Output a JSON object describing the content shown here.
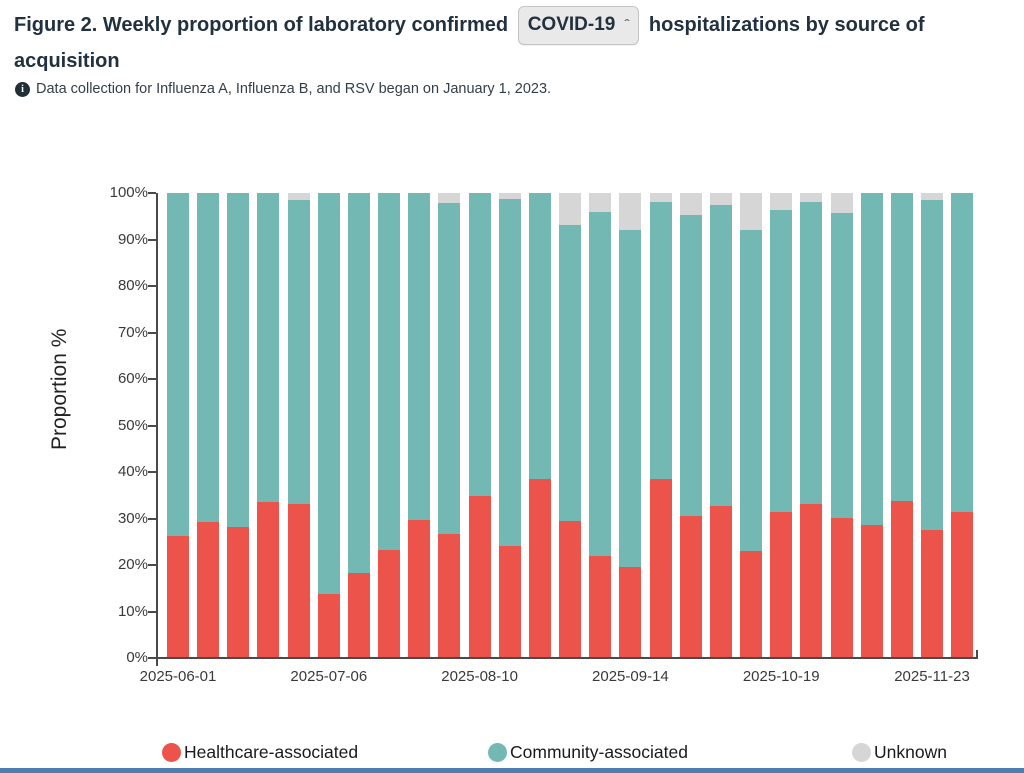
{
  "header": {
    "title_prefix": "Figure 2. Weekly proportion of laboratory confirmed",
    "title_suffix": "hospitalizations by source of acquisition",
    "pathogen_selector": {
      "value": "COVID-19"
    },
    "note": "Data collection for Influenza A, Influenza B, and RSV began on January 1, 2023."
  },
  "chart_data": {
    "type": "bar",
    "stacked": true,
    "ylabel": "Proportion %",
    "ylim": [
      0,
      100
    ],
    "grid": false,
    "legend_position": "bottom",
    "y_ticks": [
      "0%",
      "10%",
      "20%",
      "30%",
      "40%",
      "50%",
      "60%",
      "70%",
      "80%",
      "90%",
      "100%"
    ],
    "x_tick_labels": [
      "2025-06-01",
      "2025-07-06",
      "2025-08-10",
      "2025-09-14",
      "2025-10-19",
      "2025-11-23"
    ],
    "x_tick_every": 5,
    "categories": [
      "2025-06-01",
      "2025-06-08",
      "2025-06-15",
      "2025-06-22",
      "2025-06-29",
      "2025-07-06",
      "2025-07-13",
      "2025-07-20",
      "2025-07-27",
      "2025-08-03",
      "2025-08-10",
      "2025-08-17",
      "2025-08-24",
      "2025-08-31",
      "2025-09-07",
      "2025-09-14",
      "2025-09-21",
      "2025-09-28",
      "2025-10-05",
      "2025-10-12",
      "2025-10-19",
      "2025-10-26",
      "2025-11-02",
      "2025-11-09",
      "2025-11-16",
      "2025-11-23",
      "2025-11-30"
    ],
    "series": [
      {
        "name": "Healthcare-associated",
        "color": "#EC544B",
        "values": [
          26.0,
          29.0,
          28.0,
          33.5,
          33.0,
          13.5,
          18.0,
          23.0,
          29.5,
          26.5,
          34.7,
          24.0,
          38.3,
          29.4,
          21.7,
          19.5,
          38.4,
          30.3,
          32.6,
          22.9,
          31.2,
          33.0,
          30.0,
          28.5,
          33.6,
          27.3,
          31.2
        ]
      },
      {
        "name": "Community-associated",
        "color": "#74B8B4",
        "values": [
          74.0,
          71.0,
          72.0,
          66.5,
          65.5,
          86.5,
          82.0,
          77.0,
          70.5,
          71.3,
          65.3,
          74.8,
          61.7,
          63.7,
          74.3,
          72.6,
          59.6,
          65.0,
          64.9,
          69.1,
          65.1,
          65.0,
          65.7,
          71.5,
          66.4,
          71.3,
          68.8
        ]
      },
      {
        "name": "Unknown",
        "color": "#D6D6D6",
        "values": [
          0,
          0,
          0,
          0,
          1.5,
          0,
          0,
          0,
          0,
          2.2,
          0,
          1.2,
          0,
          6.9,
          4.0,
          7.9,
          2.0,
          4.7,
          2.5,
          8.0,
          3.7,
          2.0,
          4.3,
          0,
          0,
          1.4,
          0
        ]
      }
    ]
  },
  "footer": {
    "accent_bar_color": "#4C7FB0"
  }
}
